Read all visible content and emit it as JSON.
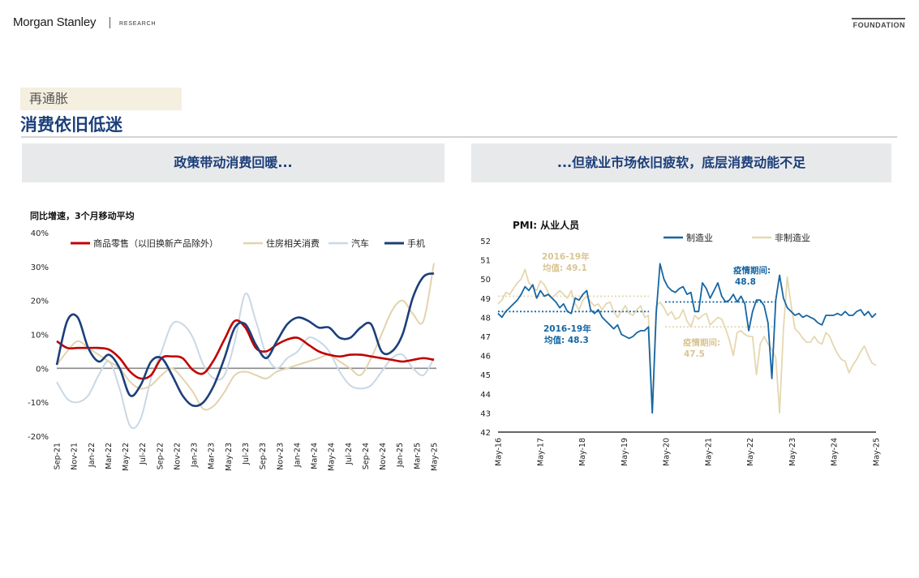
{
  "header": {
    "brand": "Morgan Stanley",
    "research": "RESEARCH",
    "foundation": "FOUNDATION"
  },
  "kicker": "再通胀",
  "headline": "消费依旧低迷",
  "left_banner": "政策带动消费回暖...",
  "right_banner": "...但就业市场依旧疲软，底层消费动能不足",
  "colors": {
    "red": "#c00000",
    "beige": "#e2d3ad",
    "lightblue": "#c9d8e5",
    "navy": "#1c3f7a",
    "mfg": "#1566a3",
    "nonmfg": "#e5d7b0",
    "headline": "#1c3f7a"
  },
  "chart_data": [
    {
      "type": "line",
      "title": "同比增速，3个月移动平均",
      "ylim": [
        -20,
        40
      ],
      "yticks": [
        "40%",
        "30%",
        "20%",
        "10%",
        "0%",
        "-10%",
        "-20%"
      ],
      "xticks": [
        "Sep-21",
        "Nov-21",
        "Jan-22",
        "Mar-22",
        "May-22",
        "Jul-22",
        "Sep-22",
        "Nov-22",
        "Jan-23",
        "Mar-23",
        "May-23",
        "Jul-23",
        "Sep-23",
        "Nov-23",
        "Jan-24",
        "Mar-24",
        "May-24",
        "Jul-24",
        "Sep-24",
        "Nov-24",
        "Jan-25",
        "Mar-25",
        "May-25"
      ],
      "series": [
        {
          "name": "商品零售（以旧换新产品除外）",
          "color_key": "red",
          "values": [
            8,
            6,
            6,
            6,
            6,
            5.5,
            3,
            -1,
            -3,
            -2,
            3,
            3.5,
            3,
            -0.5,
            -1.5,
            2.5,
            8.5,
            14,
            12,
            6,
            5,
            7,
            8.5,
            9,
            7,
            5,
            4,
            3.5,
            4,
            4,
            3.5,
            3,
            2.5,
            2,
            2.5,
            3,
            2.5
          ]
        },
        {
          "name": "住房相关消费",
          "color_key": "beige",
          "values": [
            1,
            5,
            8,
            6,
            4,
            2,
            0,
            -4,
            -6,
            -5,
            -2,
            0,
            -3,
            -7,
            -12,
            -11,
            -7,
            -2,
            -1,
            -2,
            -3,
            -1,
            0,
            1,
            2,
            3,
            4,
            2,
            0,
            -2,
            3,
            10,
            17,
            20,
            16,
            14,
            31
          ]
        },
        {
          "name": "汽车",
          "color_key": "lightblue",
          "values": [
            -4,
            -9,
            -10,
            -8,
            -2,
            2,
            -6,
            -17,
            -15,
            -3,
            5,
            13,
            13,
            9,
            1,
            -3,
            -2,
            8,
            22,
            14,
            4,
            0,
            3,
            5,
            9,
            8,
            5,
            -1,
            -5,
            -6,
            -5,
            -1,
            3,
            4,
            0,
            -2,
            3
          ]
        },
        {
          "name": "手机",
          "color_key": "navy",
          "values": [
            1,
            14,
            15,
            6,
            2,
            4,
            0,
            -8,
            -5,
            2,
            3,
            -2,
            -8,
            -11,
            -10,
            -5,
            3,
            12,
            13,
            7,
            3,
            8,
            13,
            15,
            14,
            12,
            12,
            9,
            9,
            12,
            13,
            5,
            5,
            10,
            21,
            27,
            28
          ]
        }
      ]
    },
    {
      "type": "line",
      "title": "PMI: 从业人员",
      "ylim": [
        42,
        52
      ],
      "yticks": [
        "52",
        "51",
        "50",
        "49",
        "48",
        "47",
        "46",
        "45",
        "44",
        "43",
        "42"
      ],
      "xticks": [
        "May-16",
        "May-17",
        "May-18",
        "May-19",
        "May-20",
        "May-21",
        "May-22",
        "May-23",
        "May-24",
        "May-25"
      ],
      "series": [
        {
          "name": "制造业",
          "color_key": "mfg",
          "values": [
            48.2,
            48.0,
            48.3,
            48.5,
            48.7,
            48.9,
            49.2,
            49.6,
            49.4,
            49.7,
            49.0,
            49.4,
            49.1,
            49.2,
            49.0,
            48.8,
            48.5,
            48.7,
            48.3,
            48.2,
            49.0,
            48.9,
            49.2,
            49.4,
            48.4,
            48.2,
            48.4,
            48.0,
            47.8,
            47.6,
            47.4,
            47.6,
            47.1,
            47.0,
            46.9,
            47.0,
            47.2,
            47.3,
            47.3,
            47.5,
            43.0,
            48.2,
            50.8,
            50.0,
            49.6,
            49.4,
            49.3,
            49.5,
            49.6,
            49.2,
            49.3,
            48.3,
            48.3,
            49.8,
            49.5,
            49.0,
            49.4,
            49.8,
            49.1,
            48.8,
            48.9,
            49.2,
            48.8,
            49.1,
            48.7,
            47.3,
            48.3,
            48.9,
            48.9,
            48.6,
            47.7,
            44.8,
            48.9,
            50.2,
            49.0,
            48.5,
            48.3,
            48.1,
            48.2,
            48.0,
            48.1,
            48.0,
            47.9,
            47.7,
            47.6,
            48.1,
            48.1,
            48.1,
            48.2,
            48.1,
            48.3,
            48.1,
            48.1,
            48.3,
            48.4,
            48.1,
            48.3,
            48.0,
            48.2
          ]
        },
        {
          "name": "非制造业",
          "color_key": "nonmfg",
          "values": [
            48.7,
            48.9,
            49.3,
            49.2,
            49.5,
            49.8,
            50.0,
            50.5,
            49.8,
            49.6,
            49.4,
            49.9,
            49.7,
            49.3,
            49.0,
            49.2,
            49.4,
            49.2,
            49.0,
            49.4,
            48.7,
            48.4,
            48.9,
            49.1,
            48.8,
            48.6,
            48.7,
            48.4,
            48.7,
            48.8,
            48.3,
            48.0,
            48.3,
            48.6,
            48.2,
            48.1,
            48.4,
            48.6,
            48.0,
            48.1,
            43.0,
            48.6,
            48.8,
            48.5,
            48.1,
            48.3,
            47.9,
            48.0,
            48.4,
            47.8,
            47.5,
            48.1,
            47.9,
            48.1,
            48.2,
            47.6,
            47.8,
            48.0,
            47.9,
            47.4,
            46.8,
            46.0,
            47.2,
            47.3,
            47.1,
            47.0,
            47.0,
            45.0,
            46.6,
            47.0,
            46.6,
            46.3,
            45.9,
            43.0,
            47.4,
            50.1,
            48.6,
            47.4,
            47.2,
            46.9,
            46.7,
            46.7,
            47.0,
            46.7,
            46.6,
            47.2,
            47.0,
            46.5,
            46.1,
            45.8,
            45.7,
            45.1,
            45.5,
            45.8,
            46.2,
            46.5,
            46.0,
            45.6,
            45.5
          ]
        }
      ],
      "annotations": [
        {
          "text1": "2016-19年",
          "text2": "均值: 49.1",
          "color_key": "nonmfg"
        },
        {
          "text1": "2016-19年",
          "text2": "均值: 48.3",
          "color_key": "mfg"
        },
        {
          "text1": "疫情期间:",
          "text2": "48.8",
          "color_key": "mfg"
        },
        {
          "text1": "疫情期间:",
          "text2": "47.5",
          "color_key": "nonmfg"
        }
      ],
      "reference_lines": [
        {
          "series": "非制造业",
          "period": "2016-19",
          "value": 49.1
        },
        {
          "series": "制造业",
          "period": "2016-19",
          "value": 48.3
        },
        {
          "series": "制造业",
          "period": "pandemic",
          "value": 48.8
        },
        {
          "series": "非制造业",
          "period": "pandemic",
          "value": 47.5
        }
      ]
    }
  ]
}
